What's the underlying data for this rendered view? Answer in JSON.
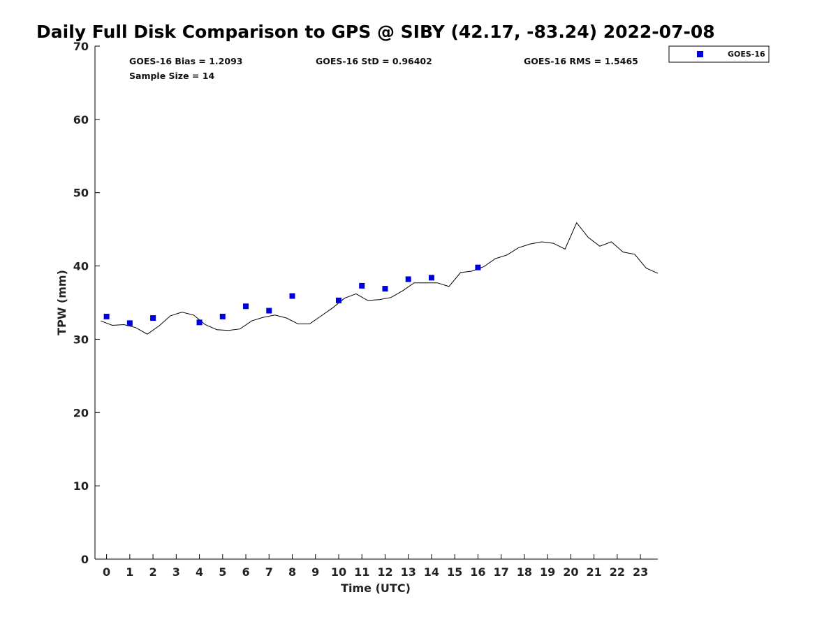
{
  "chart_data": {
    "type": "scatter",
    "title": "Daily Full Disk Comparison to GPS @ SIBY (42.17, -83.24) 2022-07-08",
    "xlabel": "Time (UTC)",
    "ylabel": "TPW (mm)",
    "xlim": [
      -0.5,
      23.75
    ],
    "ylim": [
      0,
      70
    ],
    "xticks": [
      "0",
      "1",
      "2",
      "3",
      "4",
      "5",
      "6",
      "7",
      "8",
      "9",
      "10",
      "11",
      "12",
      "13",
      "14",
      "15",
      "16",
      "17",
      "18",
      "19",
      "20",
      "21",
      "22",
      "23"
    ],
    "yticks": [
      0,
      10,
      20,
      30,
      40,
      50,
      60,
      70
    ],
    "grid": false,
    "legend_position": "top-right",
    "stats": {
      "bias": "GOES-16 Bias = 1.2093",
      "std": "GOES-16 StD = 0.96402",
      "rms": "GOES-16 RMS = 1.5465",
      "sample": "Sample Size = 14"
    },
    "series": [
      {
        "name": "GOES-16",
        "kind": "scatter",
        "marker": "square",
        "color": "#0000dd",
        "x": [
          0,
          1,
          2,
          4,
          5,
          6,
          7,
          8,
          10,
          11,
          12,
          13,
          14,
          16
        ],
        "y": [
          33.1,
          32.2,
          32.9,
          32.3,
          33.1,
          34.5,
          33.9,
          35.9,
          35.3,
          37.3,
          36.9,
          38.2,
          38.4,
          39.8
        ]
      },
      {
        "kind": "line",
        "color": "#000000",
        "x": [
          -0.25,
          0.25,
          0.75,
          1.25,
          1.75,
          2.25,
          2.75,
          3.25,
          3.75,
          4.25,
          4.75,
          5.25,
          5.75,
          6.25,
          6.75,
          7.25,
          7.75,
          8.25,
          8.75,
          9.25,
          9.75,
          10.25,
          10.75,
          11.25,
          11.75,
          12.25,
          12.75,
          13.25,
          13.75,
          14.25,
          14.75,
          15.25,
          15.75,
          16.25,
          16.75,
          17.25,
          17.75,
          18.25,
          18.75,
          19.25,
          19.75,
          20.25,
          20.75,
          21.25,
          21.75,
          22.25,
          22.75,
          23.25,
          23.75
        ],
        "y": [
          32.5,
          31.9,
          32.0,
          31.6,
          30.7,
          31.8,
          33.2,
          33.7,
          33.3,
          32.0,
          31.3,
          31.2,
          31.4,
          32.5,
          33.0,
          33.3,
          32.9,
          32.1,
          32.1,
          33.2,
          34.3,
          35.6,
          36.2,
          35.3,
          35.4,
          35.7,
          36.6,
          37.7,
          37.7,
          37.7,
          37.2,
          39.1,
          39.3,
          39.9,
          41.0,
          41.5,
          42.5,
          43.0,
          43.3,
          43.1,
          42.3,
          45.9,
          43.9,
          42.7,
          43.3,
          41.9,
          41.6,
          39.7,
          39.0
        ]
      }
    ]
  }
}
